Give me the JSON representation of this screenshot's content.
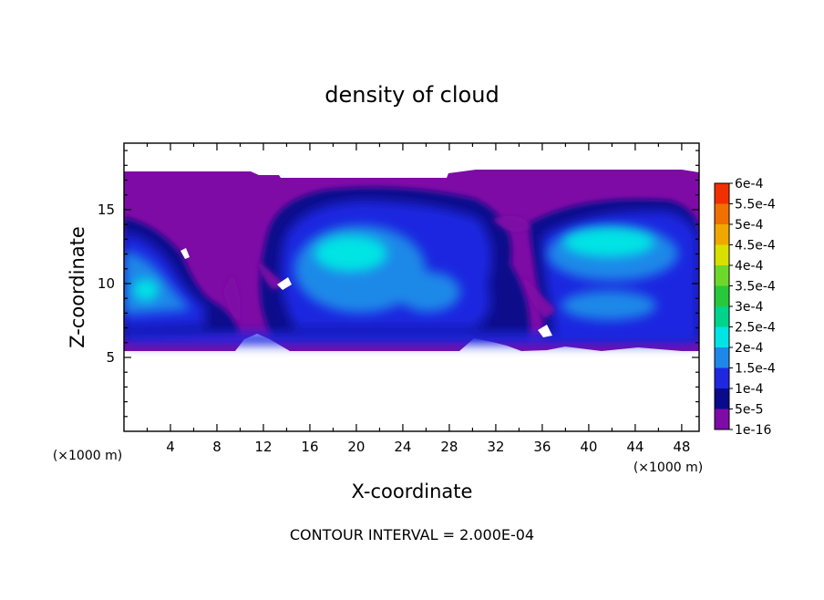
{
  "chart_data": {
    "type": "heatmap",
    "title": "density of cloud",
    "xlabel": "X-coordinate",
    "ylabel": "Z-coordinate",
    "x_unit": "(×1000 m)",
    "y_unit": "(×1000 m)",
    "xlim": [
      0,
      49.5
    ],
    "ylim": [
      0,
      19.5
    ],
    "x_ticks": [
      4,
      8,
      12,
      16,
      20,
      24,
      28,
      32,
      36,
      40,
      44,
      48
    ],
    "y_ticks": [
      5,
      10,
      15
    ],
    "colorbar": {
      "levels": [
        {
          "label": "1e-16",
          "color": "#7e0ba6"
        },
        {
          "label": "5e-5",
          "color": "#0a0a8c"
        },
        {
          "label": "1e-4",
          "color": "#1f28e0"
        },
        {
          "label": "1.5e-4",
          "color": "#1e88e8"
        },
        {
          "label": "2e-4",
          "color": "#00e4e4"
        },
        {
          "label": "2.5e-4",
          "color": "#00d48c"
        },
        {
          "label": "3e-4",
          "color": "#28c83c"
        },
        {
          "label": "3.5e-4",
          "color": "#6ed82a"
        },
        {
          "label": "4e-4",
          "color": "#d8e000"
        },
        {
          "label": "4.5e-4",
          "color": "#f0a800"
        },
        {
          "label": "5e-4",
          "color": "#f07000"
        },
        {
          "label": "5.5e-4",
          "color": "#f03000"
        },
        {
          "label": "6e-4",
          "color": "#f49a9a"
        }
      ]
    },
    "footer": "CONTOUR INTERVAL = 2.000E-04"
  }
}
